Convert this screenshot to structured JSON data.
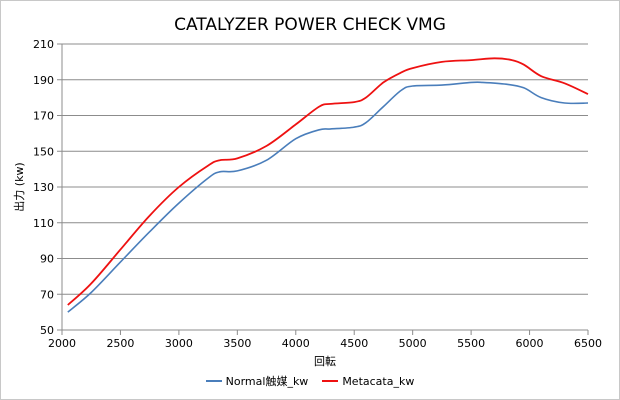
{
  "chart_data": {
    "type": "line",
    "title": "CATALYZER POWER CHECK VMG",
    "xlabel": "回転",
    "ylabel": "出力 (kw)",
    "xlim": [
      2000,
      6500
    ],
    "ylim": [
      50,
      210
    ],
    "x_ticks": [
      2000,
      2500,
      3000,
      3500,
      4000,
      4500,
      5000,
      5500,
      6000,
      6500
    ],
    "y_ticks": [
      50,
      70,
      90,
      110,
      130,
      150,
      170,
      190,
      210
    ],
    "grid": "horizontal",
    "legend_position": "bottom",
    "series": [
      {
        "name": "Normal触媒_kw",
        "color": "#4a7ebb",
        "x": [
          2050,
          2250,
          2500,
          2750,
          3000,
          3250,
          3350,
          3500,
          3750,
          4000,
          4200,
          4300,
          4500,
          4600,
          4750,
          4900,
          5000,
          5250,
          5500,
          5600,
          5800,
          5950,
          6100,
          6300,
          6500
        ],
        "y": [
          60,
          71,
          88,
          105,
          121,
          135,
          138.5,
          139,
          145,
          157,
          162,
          162.5,
          163.5,
          166,
          175,
          184,
          186.5,
          187,
          188.5,
          188.5,
          187.5,
          185.5,
          180,
          177,
          177
        ]
      },
      {
        "name": "Metacata_kw",
        "color": "#ee1111",
        "x": [
          2050,
          2250,
          2500,
          2750,
          3000,
          3250,
          3350,
          3500,
          3750,
          4000,
          4200,
          4300,
          4500,
          4600,
          4750,
          4900,
          5000,
          5250,
          5500,
          5700,
          5850,
          5950,
          6100,
          6300,
          6500
        ],
        "y": [
          64,
          76,
          95,
          114,
          130,
          142,
          145,
          146,
          153,
          165,
          175,
          176.5,
          177.5,
          180,
          188.5,
          194,
          196.5,
          200,
          201,
          202,
          201,
          198.5,
          192,
          188,
          182
        ]
      }
    ]
  }
}
